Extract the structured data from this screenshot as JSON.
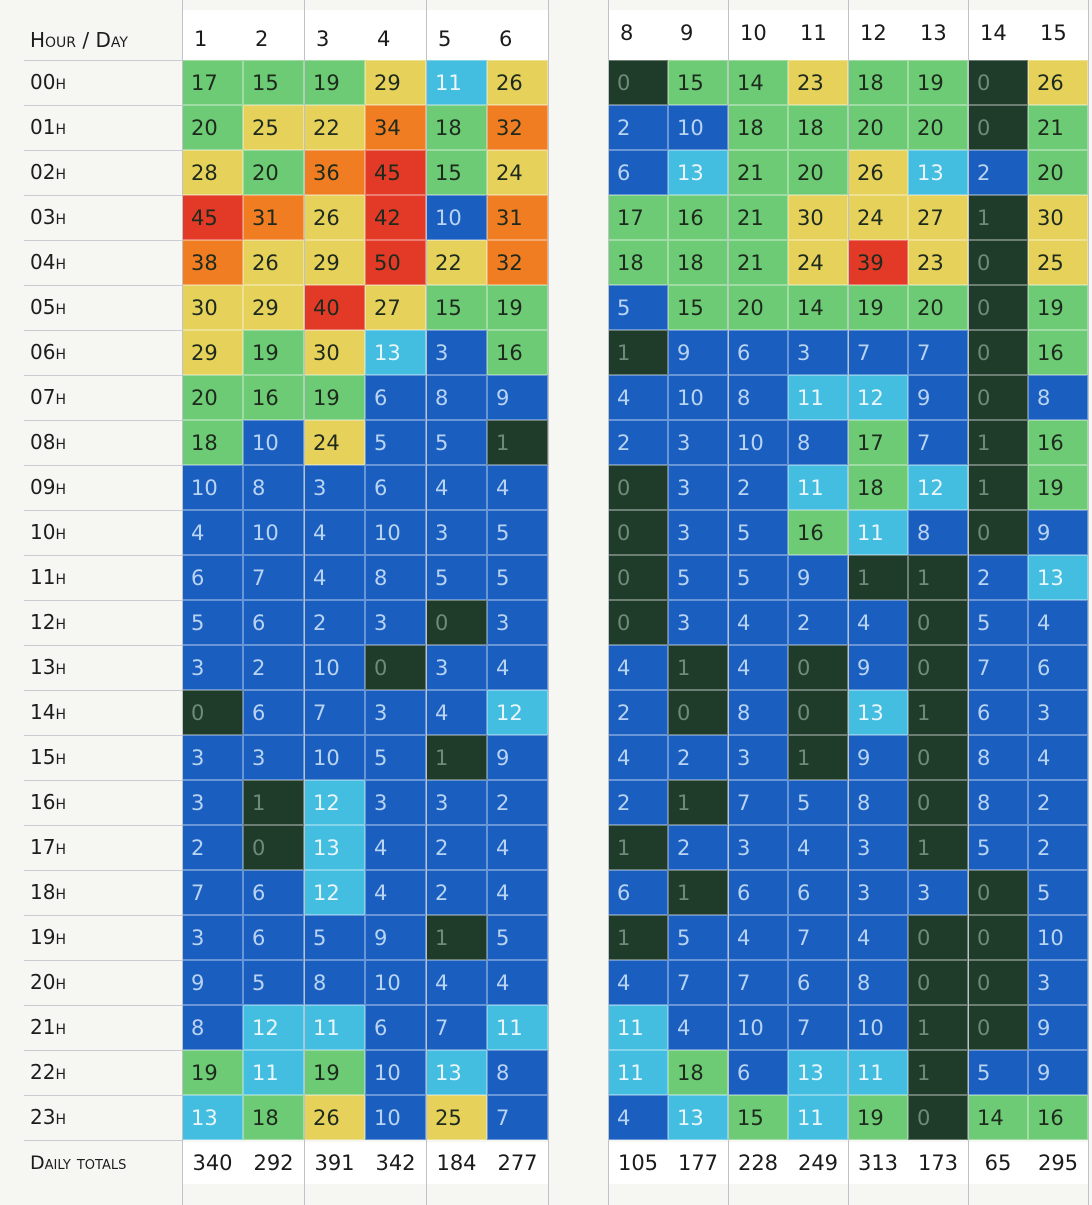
{
  "chart_data": {
    "type": "heatmap",
    "corner_label": "Hour / Day",
    "totals_label": "Daily totals",
    "hours": [
      "00h",
      "01h",
      "02h",
      "03h",
      "04h",
      "05h",
      "06h",
      "07h",
      "08h",
      "09h",
      "10h",
      "11h",
      "12h",
      "13h",
      "14h",
      "15h",
      "16h",
      "17h",
      "18h",
      "19h",
      "20h",
      "21h",
      "22h",
      "23h"
    ],
    "panels": [
      {
        "days": [
          "1",
          "2",
          "3",
          "4",
          "5",
          "6"
        ],
        "values": [
          [
            17,
            15,
            19,
            29,
            11,
            26
          ],
          [
            20,
            25,
            22,
            34,
            18,
            32
          ],
          [
            28,
            20,
            36,
            45,
            15,
            24
          ],
          [
            45,
            31,
            26,
            42,
            10,
            31
          ],
          [
            38,
            26,
            29,
            50,
            22,
            32
          ],
          [
            30,
            29,
            40,
            27,
            15,
            19
          ],
          [
            29,
            19,
            30,
            13,
            3,
            16
          ],
          [
            20,
            16,
            19,
            6,
            8,
            9
          ],
          [
            18,
            10,
            24,
            5,
            5,
            1
          ],
          [
            10,
            8,
            3,
            6,
            4,
            4
          ],
          [
            4,
            10,
            4,
            10,
            3,
            5
          ],
          [
            6,
            7,
            4,
            8,
            5,
            5
          ],
          [
            5,
            6,
            2,
            3,
            0,
            3
          ],
          [
            3,
            2,
            10,
            0,
            3,
            4
          ],
          [
            0,
            6,
            7,
            3,
            4,
            12
          ],
          [
            3,
            3,
            10,
            5,
            1,
            9
          ],
          [
            3,
            1,
            12,
            3,
            3,
            2
          ],
          [
            2,
            0,
            13,
            4,
            2,
            4
          ],
          [
            7,
            6,
            12,
            4,
            2,
            4
          ],
          [
            3,
            6,
            5,
            9,
            1,
            5
          ],
          [
            9,
            5,
            8,
            10,
            4,
            4
          ],
          [
            8,
            12,
            11,
            6,
            7,
            11
          ],
          [
            19,
            11,
            19,
            10,
            13,
            8
          ],
          [
            13,
            18,
            26,
            10,
            25,
            7
          ]
        ],
        "totals": [
          "340",
          "292",
          "391",
          "342",
          "184",
          "277"
        ]
      },
      {
        "days": [
          "8",
          "9",
          "10",
          "11",
          "12",
          "13",
          "14",
          "15"
        ],
        "values": [
          [
            0,
            15,
            14,
            23,
            18,
            19,
            0,
            26
          ],
          [
            2,
            10,
            18,
            18,
            20,
            20,
            0,
            21
          ],
          [
            6,
            13,
            21,
            20,
            26,
            13,
            2,
            20
          ],
          [
            17,
            16,
            21,
            30,
            24,
            27,
            1,
            30
          ],
          [
            18,
            18,
            21,
            24,
            39,
            23,
            0,
            25
          ],
          [
            5,
            15,
            20,
            14,
            19,
            20,
            0,
            19
          ],
          [
            1,
            9,
            6,
            3,
            7,
            7,
            0,
            16
          ],
          [
            4,
            10,
            8,
            11,
            12,
            9,
            0,
            8
          ],
          [
            2,
            3,
            10,
            8,
            17,
            7,
            1,
            16
          ],
          [
            0,
            3,
            2,
            11,
            18,
            12,
            1,
            19
          ],
          [
            0,
            3,
            5,
            16,
            11,
            8,
            0,
            9
          ],
          [
            0,
            5,
            5,
            9,
            1,
            1,
            2,
            13
          ],
          [
            0,
            3,
            4,
            2,
            4,
            0,
            5,
            4
          ],
          [
            4,
            1,
            4,
            0,
            9,
            0,
            7,
            6
          ],
          [
            2,
            0,
            8,
            0,
            13,
            1,
            6,
            3
          ],
          [
            4,
            2,
            3,
            1,
            9,
            0,
            8,
            4
          ],
          [
            2,
            1,
            7,
            5,
            8,
            0,
            8,
            2
          ],
          [
            1,
            2,
            3,
            4,
            3,
            1,
            5,
            2
          ],
          [
            6,
            1,
            6,
            6,
            3,
            3,
            0,
            5
          ],
          [
            1,
            5,
            4,
            7,
            4,
            0,
            0,
            10
          ],
          [
            4,
            7,
            7,
            6,
            8,
            0,
            0,
            3
          ],
          [
            11,
            4,
            10,
            7,
            10,
            1,
            0,
            9
          ],
          [
            11,
            18,
            6,
            13,
            11,
            1,
            5,
            9
          ],
          [
            4,
            13,
            15,
            11,
            19,
            0,
            14,
            16
          ]
        ],
        "totals": [
          "105",
          "177",
          "228",
          "249",
          "313",
          "173",
          "65",
          "295"
        ]
      }
    ],
    "color_scale": [
      {
        "min": 0,
        "max": 1,
        "color": "#1f3b2a"
      },
      {
        "min": 2,
        "max": 10,
        "color": "#1a5fc0"
      },
      {
        "min": 11,
        "max": 13,
        "color": "#43bde0"
      },
      {
        "min": 14,
        "max": 21,
        "color": "#6ccb74"
      },
      {
        "min": 22,
        "max": 30,
        "color": "#e6d15a"
      },
      {
        "min": 31,
        "max": 38,
        "color": "#f07d22"
      },
      {
        "min": 39,
        "max": 99,
        "color": "#e23a26"
      }
    ]
  }
}
